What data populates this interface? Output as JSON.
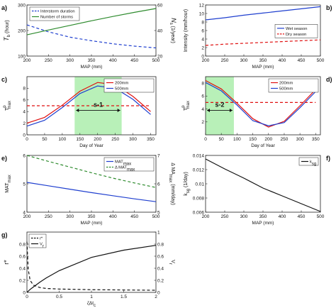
{
  "colors": {
    "blue": "#1f3fcf",
    "green": "#2e8b2e",
    "red": "#e01010",
    "black": "#111111",
    "band": "#b8f0b8"
  },
  "chart_data": [
    {
      "panel": "a)",
      "type": "line",
      "x": [
        200,
        250,
        300,
        350,
        400,
        450,
        500
      ],
      "xlabel": "MAP (mm)",
      "xlim": [
        200,
        500
      ],
      "xticks": [
        200,
        250,
        300,
        350,
        400,
        450,
        500
      ],
      "ylabel_left": "T_b (hour)",
      "ylim_left": [
        100,
        300
      ],
      "yticks_left": [
        100,
        200,
        300
      ],
      "ylabel_right": "N_s (1/year)",
      "ylim_right": [
        20,
        60
      ],
      "yticks_right": [
        20,
        40,
        60
      ],
      "legend": "top-left",
      "series": [
        {
          "name": "Interstorm duration",
          "axis": "left",
          "style": "dashed",
          "color": "blue",
          "values": [
            222,
            195,
            174,
            160,
            148,
            139,
            132
          ]
        },
        {
          "name": "Number of storms",
          "axis": "right",
          "style": "solid",
          "color": "green",
          "values": [
            36.6,
            40.4,
            44.0,
            47.6,
            51.0,
            54.2,
            57.2
          ]
        }
      ]
    },
    {
      "panel": "b)",
      "type": "line",
      "x": [
        200,
        250,
        300,
        350,
        400,
        450,
        500
      ],
      "xlabel": "MAP (mm)",
      "xlim": [
        200,
        500
      ],
      "xticks": [
        200,
        250,
        300,
        350,
        400,
        450,
        500
      ],
      "ylabel": "Intensity (mm/hour)",
      "ylim": [
        0,
        12
      ],
      "yticks": [
        0,
        2,
        4,
        6,
        8,
        10,
        12
      ],
      "legend": "middle-right",
      "series": [
        {
          "name": "Wet season",
          "style": "solid",
          "color": "blue",
          "values": [
            8.5,
            9.0,
            9.6,
            10.1,
            10.6,
            11.1,
            11.6
          ]
        },
        {
          "name": "Dry season",
          "style": "dashed",
          "color": "red",
          "values": [
            2.5,
            2.8,
            3.0,
            3.2,
            3.4,
            3.6,
            3.8
          ]
        }
      ]
    },
    {
      "panel": "c)",
      "type": "line",
      "x": [
        0,
        50,
        100,
        150,
        200,
        250,
        300,
        350
      ],
      "xlabel": "Day of Year",
      "xlim": [
        0,
        365
      ],
      "xticks": [
        0,
        50,
        100,
        150,
        200,
        250,
        300,
        350
      ],
      "ylabel": "T^p_max (mm/day)",
      "ylim": [
        0,
        10
      ],
      "yticks": [
        0,
        2,
        4,
        6,
        8
      ],
      "band": [
        135,
        268
      ],
      "band_label": "s-1",
      "legend": "top-right",
      "series": [
        {
          "name": "200mm",
          "style": "solid",
          "color": "red",
          "values": [
            2.0,
            3.0,
            5.1,
            7.5,
            9.0,
            8.6,
            6.6,
            4.0
          ]
        },
        {
          "name": "500mm",
          "style": "solid",
          "color": "blue",
          "values": [
            1.5,
            2.5,
            4.7,
            7.1,
            8.4,
            8.0,
            6.1,
            3.5
          ]
        },
        {
          "name": "",
          "style": "dashed",
          "color": "red",
          "values": [
            5.0,
            5.0,
            5.0,
            5.0,
            5.0,
            5.0,
            5.0,
            5.0
          ]
        }
      ]
    },
    {
      "panel": "d)",
      "type": "line",
      "x": [
        0,
        50,
        100,
        150,
        200,
        250,
        300,
        350
      ],
      "xlabel": "Day of Year",
      "xlim": [
        0,
        365
      ],
      "xticks": [
        0,
        50,
        100,
        150,
        200,
        250,
        300,
        350
      ],
      "ylabel": "T^p_max (mm/day)",
      "ylim": [
        0,
        9
      ],
      "yticks": [
        2,
        4,
        6,
        8
      ],
      "band": [
        0,
        90
      ],
      "band_label": "s-2",
      "legend": "top-right",
      "series": [
        {
          "name": "200mm",
          "style": "solid",
          "color": "red",
          "values": [
            8.4,
            7.1,
            4.9,
            2.5,
            1.2,
            2.1,
            4.5,
            7.0
          ]
        },
        {
          "name": "500mm",
          "style": "solid",
          "color": "blue",
          "values": [
            8.1,
            6.8,
            4.6,
            2.2,
            1.4,
            1.9,
            4.2,
            6.7
          ]
        },
        {
          "name": "",
          "style": "dashed",
          "color": "red",
          "values": [
            5.0,
            5.0,
            5.0,
            5.0,
            5.0,
            5.0,
            5.0,
            5.0
          ]
        }
      ]
    },
    {
      "panel": "e)",
      "type": "line",
      "x": [
        200,
        250,
        300,
        350,
        400,
        450,
        500
      ],
      "xlabel": "MAP (mm)",
      "xlim": [
        200,
        500
      ],
      "xticks": [
        200,
        250,
        300,
        350,
        400,
        450,
        500
      ],
      "ylabel_left": "MAT_max (mm/day)",
      "ylim_left": [
        4,
        6
      ],
      "yticks_left": [
        4,
        5,
        6
      ],
      "ylabel_right": "Δ MAT_max (mm/day)",
      "ylim_right": [
        5,
        7
      ],
      "yticks_right": [
        5,
        6,
        7
      ],
      "legend": "top-right",
      "series": [
        {
          "name": "MAT_max",
          "axis": "left",
          "style": "solid",
          "color": "blue",
          "values": [
            5.05,
            4.93,
            4.81,
            4.69,
            4.58,
            4.47,
            4.37
          ]
        },
        {
          "name": "Δ MAT_max",
          "axis": "right",
          "style": "dashed",
          "color": "green",
          "values": [
            7.0,
            6.79,
            6.59,
            6.39,
            6.2,
            6.03,
            5.87
          ]
        }
      ]
    },
    {
      "panel": "f)",
      "type": "line",
      "x": [
        200,
        250,
        300,
        350,
        400,
        450,
        500
      ],
      "xlabel": "MAP (mm)",
      "xlim": [
        200,
        500
      ],
      "xticks": [
        200,
        250,
        300,
        350,
        400,
        450,
        500
      ],
      "ylabel": "k_sg (1/day)",
      "ylim": [
        0.006,
        0.014
      ],
      "yticks": [
        0.006,
        0.008,
        0.01,
        0.012,
        0.014
      ],
      "legend": "top-right",
      "series": [
        {
          "name": "k_sg",
          "style": "solid",
          "color": "black",
          "values": [
            0.0135,
            0.0121,
            0.0108,
            0.0094,
            0.0083,
            0.0072,
            0.0061
          ]
        }
      ]
    },
    {
      "panel": "g)",
      "type": "line",
      "x": [
        0,
        0.02,
        0.05,
        0.1,
        0.2,
        0.3,
        0.5,
        1.0,
        1.5,
        2.0
      ],
      "xlabel": "ζΔt_c",
      "xlim": [
        0,
        2
      ],
      "xticks": [
        0,
        0.5,
        1,
        1.5,
        2
      ],
      "ylabel_left": "r*",
      "ylim_left": [
        0,
        1
      ],
      "yticks_left": [
        0,
        0.2,
        0.4,
        0.6,
        0.8
      ],
      "ylabel_right": "V_r",
      "ylim_right": [
        0,
        1
      ],
      "yticks_right": [
        0,
        0.2,
        0.4,
        0.6,
        0.8,
        1
      ],
      "legend": "top-left",
      "series": [
        {
          "name": "r*",
          "axis": "left",
          "style": "dashed",
          "color": "black",
          "values": [
            0.84,
            0.38,
            0.2,
            0.12,
            0.08,
            0.065,
            0.055,
            0.045,
            0.04,
            0.035
          ]
        },
        {
          "name": "V_r",
          "axis": "right",
          "style": "solid",
          "color": "black",
          "values": [
            0.0,
            0.02,
            0.05,
            0.09,
            0.17,
            0.24,
            0.36,
            0.58,
            0.7,
            0.78
          ]
        }
      ]
    }
  ]
}
